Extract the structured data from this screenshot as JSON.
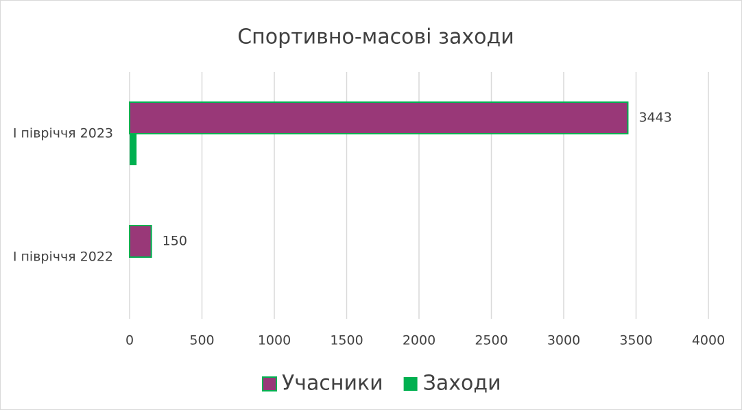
{
  "chart_data": {
    "type": "bar",
    "orientation": "horizontal",
    "title": "Спортивно-масові заходи",
    "categories": [
      "I півріччя 2023",
      "I півріччя 2022"
    ],
    "series": [
      {
        "name": "Учасники",
        "color": "#993878",
        "stroke": "#00b050",
        "values": [
          3443,
          150
        ],
        "show_labels": true
      },
      {
        "name": "Заходи",
        "color": "#00b050",
        "values": [
          48,
          0
        ],
        "show_labels": false
      }
    ],
    "xlim": [
      0,
      4000
    ],
    "xticks": [
      0,
      500,
      1000,
      1500,
      2000,
      2500,
      3000,
      3500,
      4000
    ],
    "grid": true,
    "legend": "bottom"
  }
}
